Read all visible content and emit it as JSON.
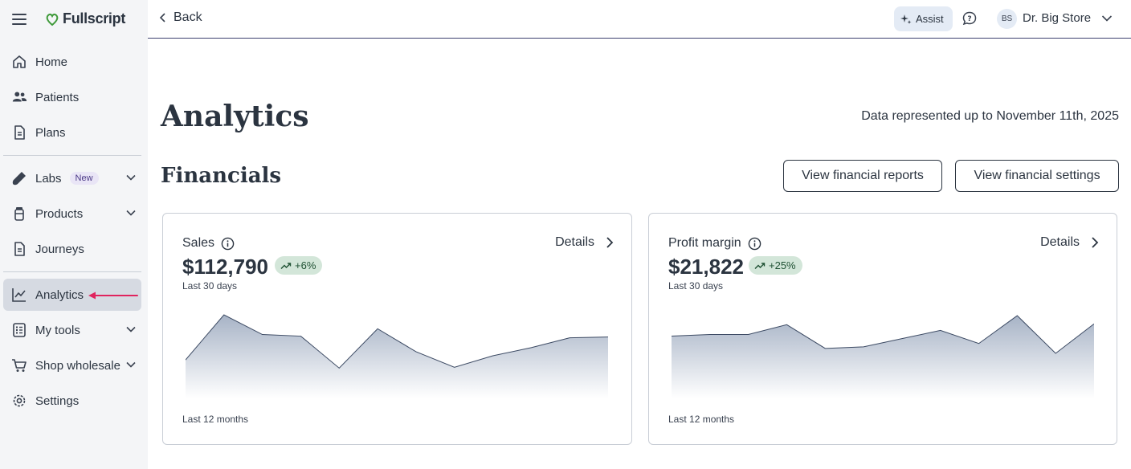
{
  "app": {
    "name": "Fullscript"
  },
  "nav": {
    "items": [
      {
        "label": "Home",
        "icon": "home-icon"
      },
      {
        "label": "Patients",
        "icon": "patients-icon"
      },
      {
        "label": "Plans",
        "icon": "plans-icon"
      },
      {
        "label": "Labs",
        "icon": "labs-icon",
        "badge": "New",
        "expandable": true
      },
      {
        "label": "Products",
        "icon": "products-icon",
        "expandable": true
      },
      {
        "label": "Journeys",
        "icon": "journeys-icon"
      },
      {
        "label": "Analytics",
        "icon": "analytics-icon",
        "active": true
      },
      {
        "label": "My tools",
        "icon": "tools-icon",
        "expandable": true
      },
      {
        "label": "Shop wholesale",
        "icon": "cart-icon",
        "expandable": true
      },
      {
        "label": "Settings",
        "icon": "gear-icon"
      }
    ]
  },
  "header": {
    "back_label": "Back",
    "assist_label": "Assist",
    "avatar_initials": "BS",
    "user_name": "Dr. Big Store"
  },
  "page": {
    "title": "Analytics",
    "data_note": "Data represented up to November 11th, 2025",
    "section_title": "Financials",
    "buttons": {
      "reports": "View financial reports",
      "settings": "View financial settings"
    }
  },
  "cards": [
    {
      "label": "Sales",
      "details": "Details",
      "amount": "$112,790",
      "trend": "+6%",
      "period": "Last 30 days",
      "footer": "Last 12 months",
      "sparkline_values": [
        0.43,
        0.98,
        0.74,
        0.72,
        0.33,
        0.81,
        0.53,
        0.34,
        0.48,
        0.58,
        0.7,
        0.71
      ]
    },
    {
      "label": "Profit margin",
      "details": "Details",
      "amount": "$21,822",
      "trend": "+25%",
      "period": "Last 30 days",
      "footer": "Last 12 months",
      "sparkline_values": [
        0.72,
        0.74,
        0.74,
        0.86,
        0.57,
        0.59,
        0.69,
        0.79,
        0.63,
        0.97,
        0.51,
        0.87
      ]
    }
  ],
  "colors": {
    "sidebar_bg": "#f4f5f7",
    "active_bg": "#d6dae2",
    "brand_green": "#3f9a3a",
    "trend_bg": "#d3e6d9",
    "annotation_arrow": "#e0245e",
    "spark_line": "#3c4a63"
  }
}
